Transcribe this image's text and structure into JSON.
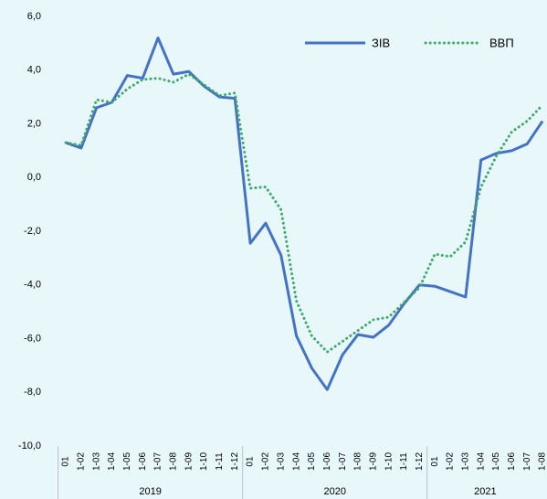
{
  "chart_data": {
    "type": "line",
    "groups": [
      {
        "label": "2019",
        "categories": [
          "01",
          "1-02",
          "1-03",
          "1-04",
          "1-05",
          "1-06",
          "1-07",
          "1-08",
          "1-09",
          "1-10",
          "1-11",
          "1-12"
        ]
      },
      {
        "label": "2020",
        "categories": [
          "01",
          "1-02",
          "1-03",
          "1-04",
          "1-05",
          "1-06",
          "1-07",
          "1-08",
          "1-09",
          "1-10",
          "1-11",
          "1-12"
        ]
      },
      {
        "label": "2021",
        "categories": [
          "01",
          "1-02",
          "1-03",
          "1-04",
          "1-05",
          "1-06",
          "1-07",
          "1-08"
        ]
      }
    ],
    "series": [
      {
        "name": "ЗІВ",
        "color": "#4472c4",
        "style": "solid",
        "values": [
          1.3,
          1.1,
          2.6,
          2.8,
          3.8,
          3.7,
          5.2,
          3.85,
          3.95,
          3.4,
          3.0,
          2.95,
          -2.45,
          -1.7,
          -2.9,
          -5.9,
          -7.1,
          -7.9,
          -6.6,
          -5.85,
          -5.95,
          -5.5,
          -4.7,
          -4.0,
          -4.05,
          -4.25,
          -4.45,
          0.65,
          0.9,
          1.0,
          1.25,
          2.1
        ]
      },
      {
        "name": "ВВП",
        "color": "#3fa86a",
        "style": "dotted",
        "values": [
          1.3,
          1.2,
          2.9,
          2.8,
          3.3,
          3.65,
          3.7,
          3.55,
          3.85,
          3.45,
          3.05,
          3.15,
          -0.4,
          -0.35,
          -1.2,
          -4.6,
          -5.9,
          -6.5,
          -6.1,
          -5.7,
          -5.3,
          -5.2,
          -4.65,
          -4.1,
          -2.85,
          -2.95,
          -2.4,
          -0.35,
          0.8,
          1.7,
          2.1,
          2.7
        ]
      }
    ],
    "ylim": [
      -10,
      6
    ],
    "yticks": [
      {
        "value": -10,
        "label": "-10,0"
      },
      {
        "value": -8,
        "label": "-8,0"
      },
      {
        "value": -6,
        "label": "-6,0"
      },
      {
        "value": -4,
        "label": "-4,0"
      },
      {
        "value": -2,
        "label": "-2,0"
      },
      {
        "value": 0,
        "label": "0,0"
      },
      {
        "value": 2,
        "label": "2,0"
      },
      {
        "value": 4,
        "label": "4,0"
      },
      {
        "value": 6,
        "label": "6,0"
      }
    ],
    "legend": "upper right"
  }
}
